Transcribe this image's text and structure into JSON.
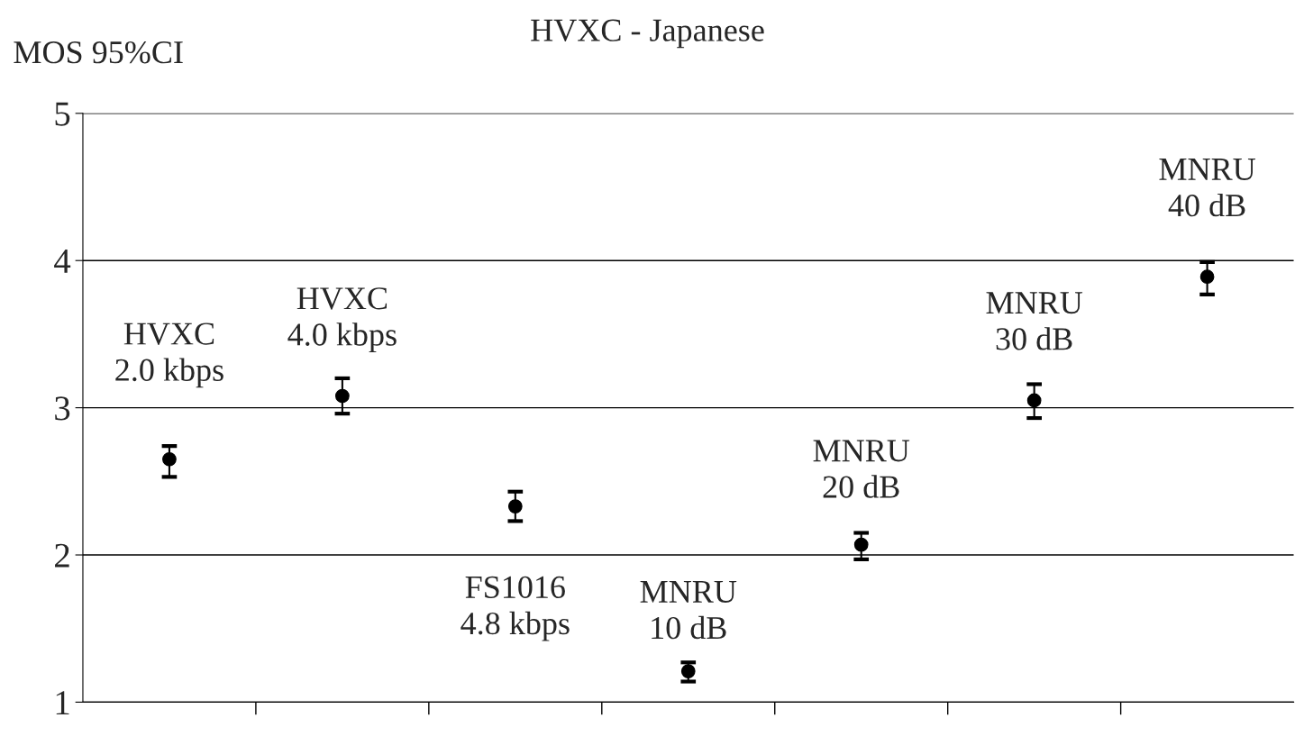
{
  "chart_data": {
    "type": "scatter",
    "title": "HVXC - Japanese",
    "ylabel": "MOS 95%CI",
    "categories": [
      null,
      null,
      null,
      null,
      null,
      null,
      null
    ],
    "series": [
      {
        "color": "#000000",
        "values": [
          2.65,
          3.08,
          2.33,
          1.21,
          2.07,
          3.05,
          3.89
        ],
        "errors": [
          [
            2.53,
            2.74
          ],
          [
            2.96,
            3.2
          ],
          [
            2.23,
            2.43
          ],
          [
            1.14,
            1.27
          ],
          [
            1.97,
            2.15
          ],
          [
            2.93,
            3.16
          ],
          [
            3.77,
            3.99
          ]
        ]
      }
    ],
    "ylim": [
      1,
      5
    ],
    "yticks": [
      1,
      2,
      3,
      4,
      5
    ],
    "grid": "y",
    "marker": "circle",
    "annotations": [
      "HVXC\n2.0 kbps",
      "HVXC\n4.0 kbps",
      "FS1016\n4.8 kbps",
      "MNRU\n10 dB",
      "MNRU\n20 dB",
      "MNRU\n30 dB",
      "MNRU\n40 dB"
    ]
  }
}
